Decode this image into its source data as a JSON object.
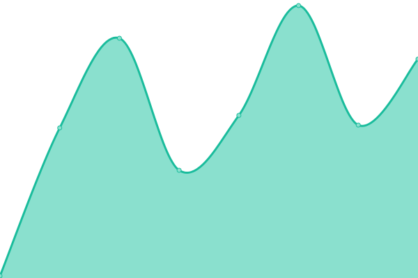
{
  "chart_data": {
    "type": "area",
    "title": "",
    "xlabel": "",
    "ylabel": "",
    "x": [
      0,
      1,
      2,
      3,
      4,
      5,
      6,
      7
    ],
    "series": [
      {
        "values": [
          3,
          216,
          345,
          155,
          234,
          392,
          220,
          315
        ]
      }
    ],
    "ylim": [
      0,
      400
    ],
    "grid": false,
    "axes_visible": false,
    "smooth": true,
    "show_points": true,
    "colors": {
      "line": "#1abc9c",
      "fill": "#8ae0ce",
      "point": "#8ae0ce"
    }
  }
}
